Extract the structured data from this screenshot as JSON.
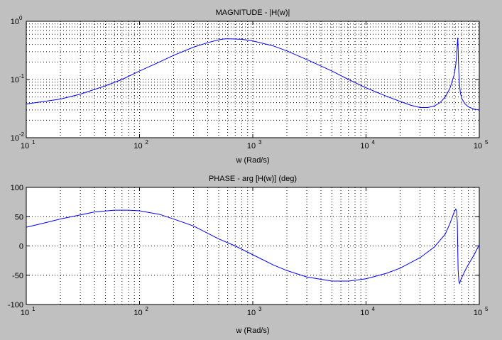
{
  "colors": {
    "figure_background": "#c0c0c0",
    "axes_background": "#ffffff",
    "curve": "#0000ff",
    "grid": "#000000"
  },
  "chart_data": [
    {
      "type": "line",
      "title": "MAGNITUDE - |H(w)|",
      "xlabel": "",
      "ylabel": "",
      "xscale": "log",
      "yscale": "log",
      "xlim": [
        10,
        100000
      ],
      "ylim": [
        0.01,
        1
      ],
      "grid": true,
      "x_ticks": [
        {
          "base": "10",
          "exp": "1"
        },
        {
          "base": "10",
          "exp": "2"
        },
        {
          "base": "10",
          "exp": "3"
        },
        {
          "base": "10",
          "exp": "4"
        },
        {
          "base": "10",
          "exp": "5"
        }
      ],
      "y_ticks": [
        {
          "base": "10",
          "exp": "-2"
        },
        {
          "base": "10",
          "exp": "-1"
        },
        {
          "base": "10",
          "exp": "0"
        }
      ],
      "series": [
        {
          "x": [
            10,
            20,
            30,
            50,
            70,
            100,
            150,
            200,
            300,
            400,
            500,
            550,
            600,
            800,
            1000,
            1500,
            2000,
            3000,
            5000,
            7000,
            10000,
            15000,
            20000,
            25000,
            30000,
            35000,
            40000,
            45000,
            50000,
            55000,
            60000,
            62000,
            63000,
            64000,
            64500,
            65000,
            65500,
            66000,
            67000,
            68000,
            70000,
            75000,
            80000,
            90000,
            100000
          ],
          "y": [
            0.038,
            0.046,
            0.056,
            0.078,
            0.1,
            0.14,
            0.2,
            0.26,
            0.36,
            0.43,
            0.48,
            0.495,
            0.5,
            0.49,
            0.46,
            0.38,
            0.31,
            0.22,
            0.14,
            0.1,
            0.072,
            0.052,
            0.042,
            0.036,
            0.033,
            0.033,
            0.035,
            0.04,
            0.05,
            0.07,
            0.12,
            0.18,
            0.25,
            0.4,
            0.52,
            0.36,
            0.2,
            0.13,
            0.08,
            0.06,
            0.047,
            0.038,
            0.034,
            0.031,
            0.03
          ]
        }
      ]
    },
    {
      "type": "line",
      "title": "PHASE - arg [H(w)] (deg)",
      "xlabel": "w (Rad/s)",
      "ylabel": "",
      "xscale": "log",
      "yscale": "linear",
      "xlim": [
        10,
        100000
      ],
      "ylim": [
        -100,
        100
      ],
      "grid": true,
      "x_ticks": [
        {
          "base": "10",
          "exp": "1"
        },
        {
          "base": "10",
          "exp": "2"
        },
        {
          "base": "10",
          "exp": "3"
        },
        {
          "base": "10",
          "exp": "4"
        },
        {
          "base": "10",
          "exp": "5"
        }
      ],
      "y_ticks": [
        "100",
        "50",
        "0",
        "-50",
        "-100"
      ],
      "series": [
        {
          "x": [
            10,
            15,
            20,
            30,
            40,
            60,
            80,
            100,
            150,
            200,
            300,
            500,
            700,
            1000,
            1500,
            2000,
            3000,
            5000,
            7000,
            10000,
            15000,
            20000,
            30000,
            40000,
            50000,
            55000,
            60000,
            62000,
            63000,
            64000,
            64500,
            65000,
            66000,
            67000,
            68000,
            70000,
            75000,
            80000,
            90000,
            100000
          ],
          "y": [
            32,
            40,
            46,
            53,
            58,
            61,
            61,
            60,
            54,
            46,
            34,
            12,
            0,
            -15,
            -32,
            -42,
            -53,
            -60,
            -60,
            -56,
            -47,
            -38,
            -20,
            -2,
            20,
            38,
            58,
            63,
            60,
            40,
            0,
            -40,
            -60,
            -64,
            -60,
            -54,
            -42,
            -32,
            -15,
            2
          ]
        }
      ]
    }
  ],
  "xlabel_top": "w (Rad/s)"
}
